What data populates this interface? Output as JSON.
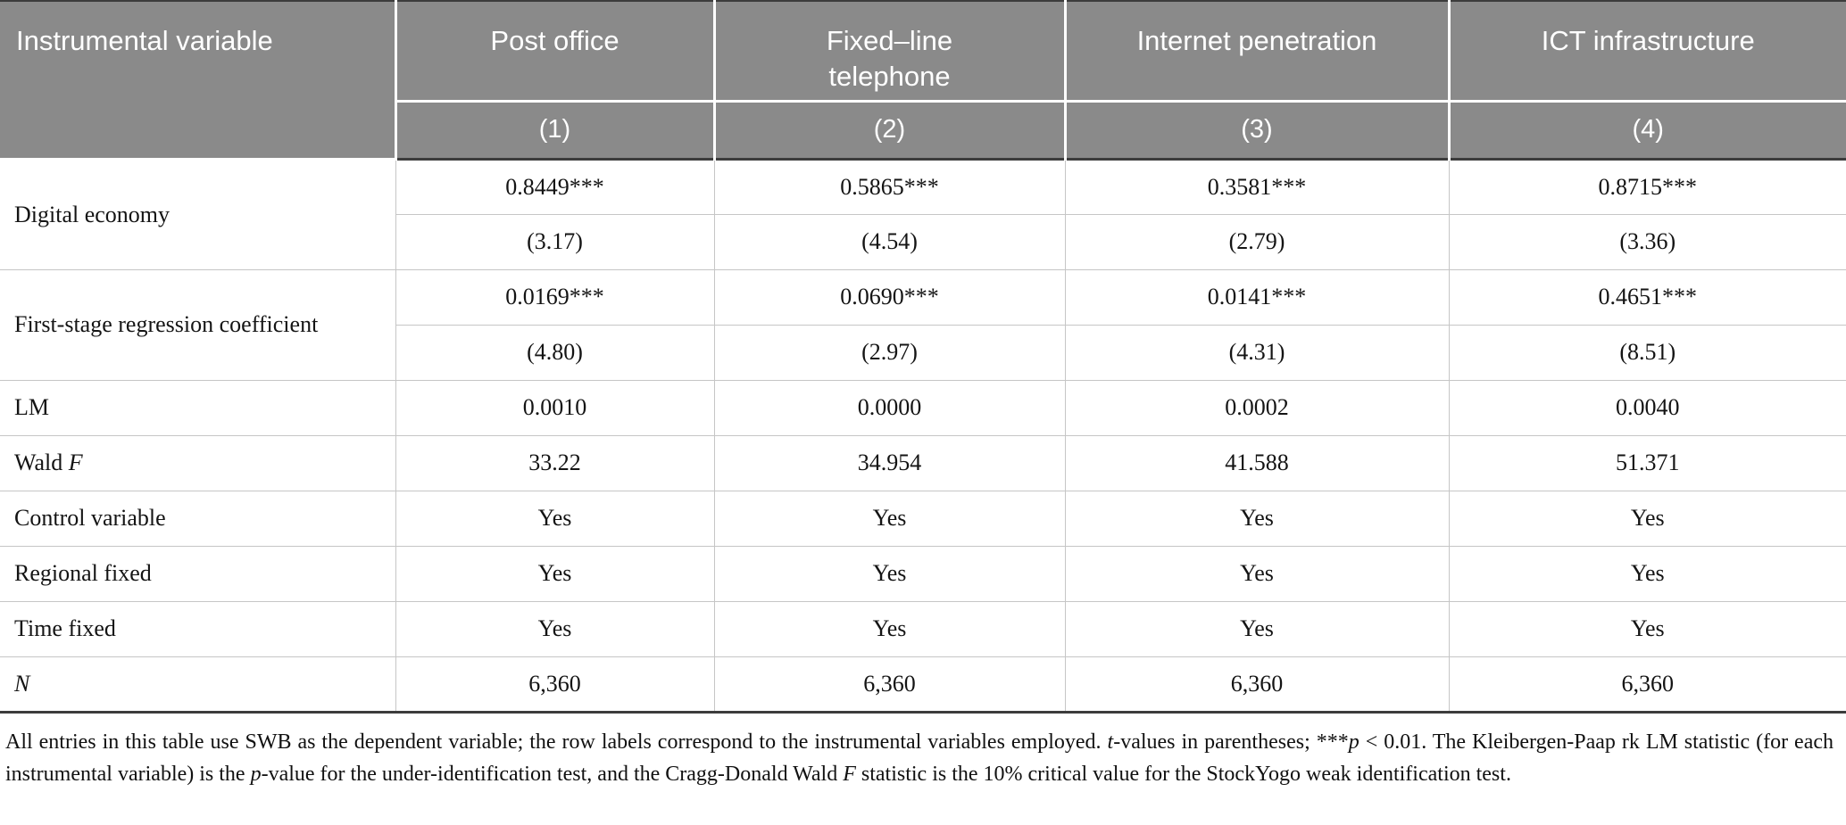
{
  "colors": {
    "header_bg": "#8a8a8a",
    "header_text": "#ffffff",
    "rule_dark": "#3c3c3c",
    "rule_light": "#c6c6c6"
  },
  "table": {
    "header": {
      "label_col": "Instrumental variable",
      "cols": [
        "Post office",
        "Fixed–line telephone",
        "Internet penetration",
        "ICT infrastructure"
      ],
      "model_numbers": [
        "(1)",
        "(2)",
        "(3)",
        "(4)"
      ]
    },
    "body": {
      "digital_economy": {
        "label": "Digital economy",
        "coef": [
          "0.8449***",
          "0.5865***",
          "0.3581***",
          "0.8715***"
        ],
        "t": [
          "(3.17)",
          "(4.54)",
          "(2.79)",
          "(3.36)"
        ]
      },
      "first_stage": {
        "label": "First-stage regression coefficient",
        "coef": [
          "0.0169***",
          "0.0690***",
          "0.0141***",
          "0.4651***"
        ],
        "t": [
          "(4.80)",
          "(2.97)",
          "(4.31)",
          "(8.51)"
        ]
      },
      "lm": {
        "label": "LM",
        "values": [
          "0.0010",
          "0.0000",
          "0.0002",
          "0.0040"
        ]
      },
      "wald": {
        "label_text": "Wald ",
        "label_italic": "F",
        "values": [
          "33.22",
          "34.954",
          "41.588",
          "51.371"
        ]
      },
      "control": {
        "label": "Control variable",
        "values": [
          "Yes",
          "Yes",
          "Yes",
          "Yes"
        ]
      },
      "regional": {
        "label": "Regional fixed",
        "values": [
          "Yes",
          "Yes",
          "Yes",
          "Yes"
        ]
      },
      "time": {
        "label": "Time fixed",
        "values": [
          "Yes",
          "Yes",
          "Yes",
          "Yes"
        ]
      },
      "n": {
        "label_italic": "N",
        "values": [
          "6,360",
          "6,360",
          "6,360",
          "6,360"
        ]
      }
    },
    "notes_segments": [
      {
        "text": "All entries in this table use SWB as the dependent variable; the row labels correspond to the instrumental variables employed. ",
        "italic": false
      },
      {
        "text": "t",
        "italic": true
      },
      {
        "text": "-values in parentheses; ***",
        "italic": false
      },
      {
        "text": "p",
        "italic": true
      },
      {
        "text": " < 0.01. The Kleibergen-Paap rk LM statistic (for each instrumental variable) is the ",
        "italic": false
      },
      {
        "text": "p",
        "italic": true
      },
      {
        "text": "-value for the under-identification test, and the Cragg-Donald Wald ",
        "italic": false
      },
      {
        "text": "F",
        "italic": true
      },
      {
        "text": " statistic is the 10% critical value for the StockYogo weak identification test.",
        "italic": false
      }
    ]
  }
}
